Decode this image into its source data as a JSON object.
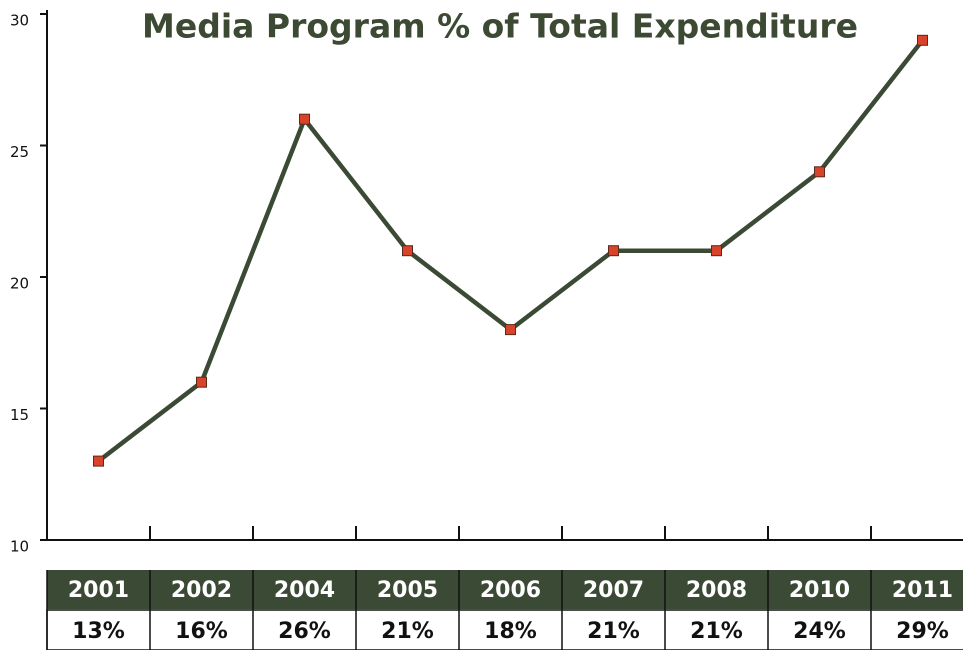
{
  "chart_data": {
    "type": "line",
    "title": "Media Program % of Total Expenditure",
    "categories": [
      "2001",
      "2002",
      "2004",
      "2005",
      "2006",
      "2007",
      "2008",
      "2010",
      "2011"
    ],
    "values": [
      13,
      16,
      26,
      21,
      18,
      21,
      21,
      24,
      29
    ],
    "value_labels": [
      "13%",
      "16%",
      "26%",
      "21%",
      "18%",
      "21%",
      "21%",
      "24%",
      "29%"
    ],
    "color": "#3b4a34",
    "marker_color": "#d9432a",
    "ylim": [
      10,
      30
    ],
    "yticks": [
      10,
      15,
      20,
      25,
      30
    ],
    "grid": false
  }
}
